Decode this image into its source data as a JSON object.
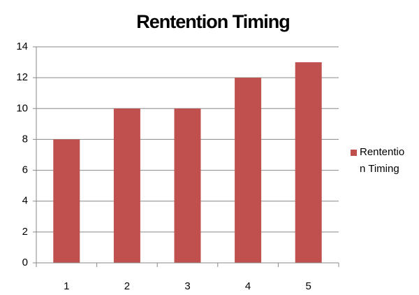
{
  "chart_data": {
    "type": "bar",
    "title": "Rentention Timing",
    "categories": [
      "1",
      "2",
      "3",
      "4",
      "5"
    ],
    "series": [
      {
        "name": "Rentention Timing",
        "color": "#c0504d",
        "values": [
          8,
          10,
          10,
          12,
          13
        ]
      }
    ],
    "ylim": [
      0,
      14
    ],
    "yticks": [
      0,
      2,
      4,
      6,
      8,
      10,
      12,
      14
    ],
    "grid": true,
    "legend": "right"
  }
}
